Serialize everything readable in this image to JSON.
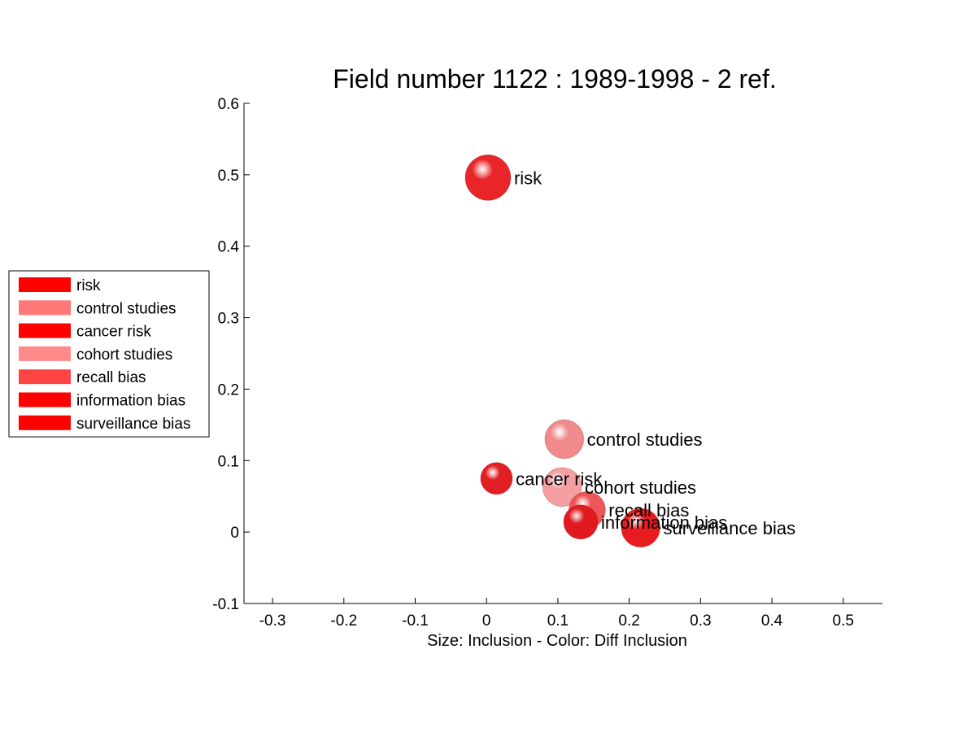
{
  "chart_data": {
    "type": "scatter",
    "title": "Field number 1122 : 1989-1998  - 2 ref.",
    "xlabel": "Size: Inclusion - Color: Diff Inclusion",
    "ylabel": "",
    "xlim": [
      -0.34,
      0.555
    ],
    "ylim": [
      -0.1,
      0.6
    ],
    "xticks": [
      -0.3,
      -0.2,
      -0.1,
      0,
      0.1,
      0.2,
      0.3,
      0.4,
      0.5
    ],
    "xtick_labels": [
      "-0.3",
      "-0.2",
      "-0.1",
      "0",
      "0.1",
      "0.2",
      "0.3",
      "0.4",
      "0.5"
    ],
    "yticks": [
      -0.1,
      0,
      0.1,
      0.2,
      0.3,
      0.4,
      0.5,
      0.6
    ],
    "ytick_labels": [
      "-0.1",
      "0",
      "0.1",
      "0.2",
      "0.3",
      "0.4",
      "0.5",
      "0.6"
    ],
    "grid": false,
    "legend_position": "left",
    "points": [
      {
        "label": "risk",
        "x": 0.002,
        "y": 0.496,
        "size": 1.0,
        "color": "#e8262a"
      },
      {
        "label": "control studies",
        "x": 0.109,
        "y": 0.13,
        "size": 0.85,
        "color": "#f08a8c"
      },
      {
        "label": "cancer risk",
        "x": 0.014,
        "y": 0.075,
        "size": 0.7,
        "color": "#e02024"
      },
      {
        "label": "cohort studies",
        "x": 0.106,
        "y": 0.063,
        "size": 0.85,
        "color": "#f4a0a2"
      },
      {
        "label": "recall bias",
        "x": 0.141,
        "y": 0.031,
        "size": 0.8,
        "color": "#ee5558"
      },
      {
        "label": "information bias",
        "x": 0.132,
        "y": 0.014,
        "size": 0.75,
        "color": "#e01a1e"
      },
      {
        "label": "surveillance bias",
        "x": 0.216,
        "y": 0.006,
        "size": 0.85,
        "color": "#e81c20"
      }
    ],
    "legend": [
      {
        "label": "risk",
        "color": "#ff0000"
      },
      {
        "label": "control studies",
        "color": "#ff7878"
      },
      {
        "label": "cancer risk",
        "color": "#ff0000"
      },
      {
        "label": "cohort studies",
        "color": "#ff8a8a"
      },
      {
        "label": "recall bias",
        "color": "#ff4444"
      },
      {
        "label": "information bias",
        "color": "#ff0000"
      },
      {
        "label": "surveillance bias",
        "color": "#ff0000"
      }
    ]
  }
}
